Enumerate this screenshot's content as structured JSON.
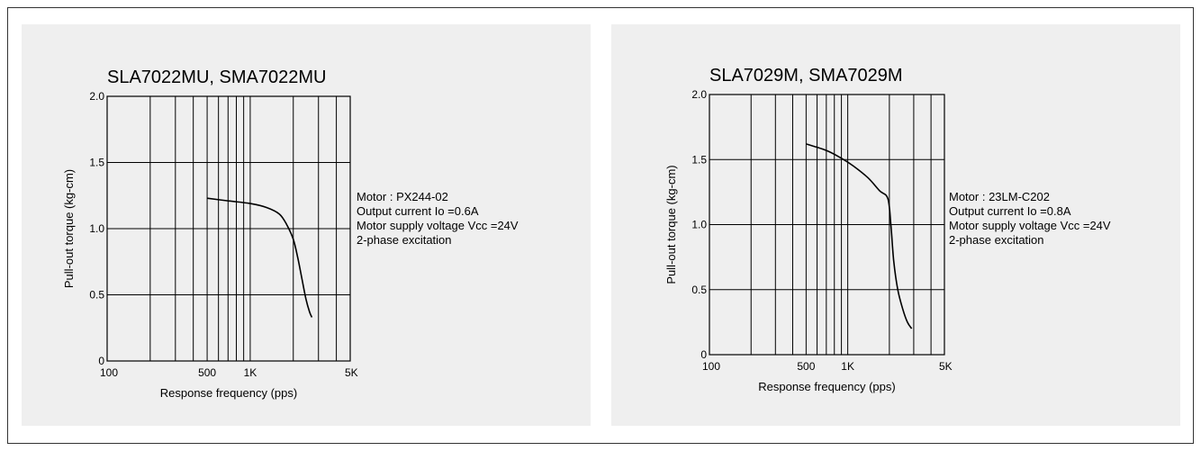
{
  "chart_data": [
    {
      "type": "line",
      "title": "SLA7022MU, SMA7022MU",
      "xlabel": "Response frequency (pps)",
      "ylabel": "Pull-out torque (kg-cm)",
      "x_scale": "log",
      "xlim": [
        100,
        5000
      ],
      "ylim": [
        0,
        2.0
      ],
      "grid": true,
      "x_ticks": [
        {
          "value": 100,
          "label": "100"
        },
        {
          "value": 500,
          "label": "500"
        },
        {
          "value": 1000,
          "label": "1K"
        },
        {
          "value": 5000,
          "label": "5K"
        }
      ],
      "y_ticks": [
        {
          "value": 0,
          "label": "0"
        },
        {
          "value": 0.5,
          "label": "0.5"
        },
        {
          "value": 1.0,
          "label": "1.0"
        },
        {
          "value": 1.5,
          "label": "1.5"
        },
        {
          "value": 2.0,
          "label": "2.0"
        }
      ],
      "series": [
        {
          "x": [
            500,
            700,
            1000,
            1300,
            1600,
            1800,
            2000,
            2150,
            2300,
            2450,
            2600,
            2700
          ],
          "y": [
            1.23,
            1.21,
            1.19,
            1.16,
            1.11,
            1.03,
            0.92,
            0.78,
            0.62,
            0.47,
            0.37,
            0.33
          ]
        }
      ],
      "annotations": [
        "Motor : PX244-02",
        "Output current Io =0.6A",
        "Motor supply voltage Vcc =24V",
        "2-phase excitation"
      ]
    },
    {
      "type": "line",
      "title": "SLA7029M, SMA7029M",
      "xlabel": "Response frequency (pps)",
      "ylabel": "Pull-out torque (kg-cm)",
      "x_scale": "log",
      "xlim": [
        100,
        5000
      ],
      "ylim": [
        0,
        2.0
      ],
      "grid": true,
      "x_ticks": [
        {
          "value": 100,
          "label": "100"
        },
        {
          "value": 500,
          "label": "500"
        },
        {
          "value": 1000,
          "label": "1K"
        },
        {
          "value": 5000,
          "label": "5K"
        }
      ],
      "y_ticks": [
        {
          "value": 0,
          "label": "0"
        },
        {
          "value": 0.5,
          "label": "0.5"
        },
        {
          "value": 1.0,
          "label": "1.0"
        },
        {
          "value": 1.5,
          "label": "1.5"
        },
        {
          "value": 2.0,
          "label": "2.0"
        }
      ],
      "series": [
        {
          "x": [
            500,
            700,
            900,
            1100,
            1400,
            1700,
            1950,
            2050,
            2150,
            2300,
            2500,
            2700,
            2900
          ],
          "y": [
            1.62,
            1.57,
            1.51,
            1.45,
            1.36,
            1.26,
            1.2,
            1.0,
            0.72,
            0.5,
            0.35,
            0.25,
            0.2
          ]
        }
      ],
      "annotations": [
        "Motor : 23LM-C202",
        "Output current Io =0.8A",
        "Motor supply voltage Vcc =24V",
        "2-phase excitation"
      ]
    }
  ]
}
